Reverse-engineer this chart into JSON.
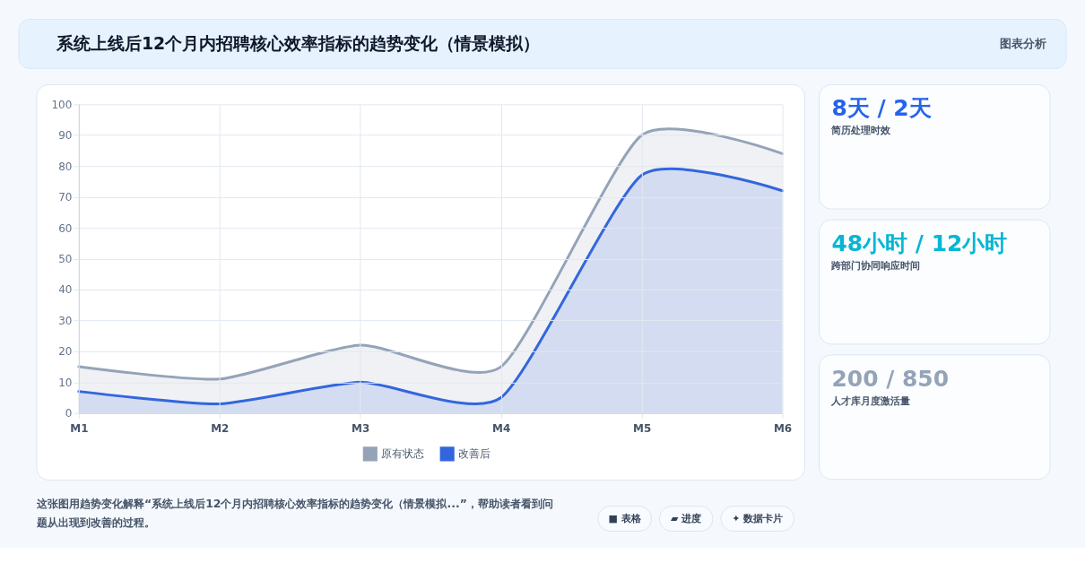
{
  "chart_data": [
    {
      "type": "area",
      "title": "系统上线后12个月内招聘核心效率指标的趋势变化（情景模拟）",
      "categories": [
        "M1",
        "M2",
        "M3",
        "M4",
        "M5",
        "M6"
      ],
      "series": [
        {
          "name": "原有状态",
          "color": "#94a3b8",
          "values": [
            15,
            11,
            22,
            15,
            90,
            84
          ]
        },
        {
          "name": "改善后",
          "color": "#3366dd",
          "values": [
            7,
            3,
            10,
            5,
            77,
            72
          ]
        }
      ],
      "ylim": [
        0,
        100
      ],
      "yticks": [
        0,
        10,
        20,
        30,
        40,
        50,
        60,
        70,
        80,
        90,
        100
      ],
      "grid": true,
      "legend": "bottom",
      "annotations": [
        "图表分析",
        "这张图用趋势变化解释“系统上线后12个月内招聘核心效率指标的趋势变化（情景模拟...”，帮助读者看到问题从出现到改善的过程。",
        "■ 表格",
        "▰ 进度",
        "✦ 数据卡片"
      ]
    },
    {
      "type": "other",
      "title": "8天 / 2天",
      "subtitle": "简历处理时效",
      "color": "#2563eb"
    },
    {
      "type": "other",
      "title": "48小时 / 12小时",
      "subtitle": "跨部门协同响应时间",
      "color": "#06b6d4"
    },
    {
      "type": "other",
      "title": "200 / 850",
      "subtitle": "人才库月度激活量",
      "color": "#94a3b8"
    }
  ]
}
